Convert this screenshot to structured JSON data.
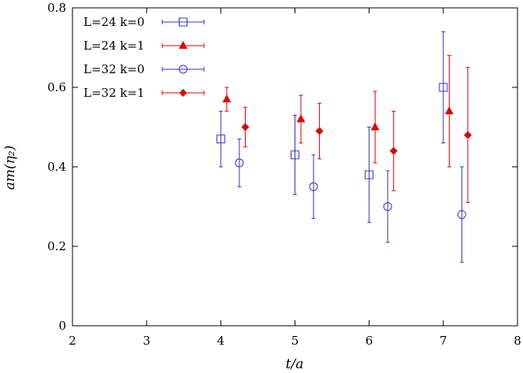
{
  "chart_data": {
    "type": "scatter",
    "title": "",
    "xlabel": "t/a",
    "ylabel": "am(η₂)",
    "xlim": [
      2,
      8
    ],
    "ylim": [
      0,
      0.8
    ],
    "xticks": [
      "2",
      "3",
      "4",
      "5",
      "6",
      "7",
      "8"
    ],
    "yticks": [
      "0",
      "0.2",
      "0.4",
      "0.6",
      "0.8"
    ],
    "grid": false,
    "legend_position": "top-left",
    "series": [
      {
        "name": "L=24 k=0",
        "color": "#3333cc",
        "marker": "open-square",
        "points": [
          {
            "x": 4.0,
            "y": 0.47,
            "err": 0.07
          },
          {
            "x": 5.0,
            "y": 0.43,
            "err": 0.1
          },
          {
            "x": 6.0,
            "y": 0.38,
            "err": 0.12
          },
          {
            "x": 7.0,
            "y": 0.6,
            "err": 0.14
          }
        ]
      },
      {
        "name": "L=24 k=1",
        "color": "#e00000",
        "marker": "filled-triangle",
        "points": [
          {
            "x": 4.08,
            "y": 0.57,
            "err": 0.03
          },
          {
            "x": 5.08,
            "y": 0.52,
            "err": 0.06
          },
          {
            "x": 6.08,
            "y": 0.5,
            "err": 0.09
          },
          {
            "x": 7.08,
            "y": 0.54,
            "err": 0.14
          }
        ]
      },
      {
        "name": "L=32 k=0",
        "color": "#3333cc",
        "marker": "open-circle",
        "points": [
          {
            "x": 4.25,
            "y": 0.41,
            "err": 0.06
          },
          {
            "x": 5.25,
            "y": 0.35,
            "err": 0.08
          },
          {
            "x": 6.25,
            "y": 0.3,
            "err": 0.09
          },
          {
            "x": 7.25,
            "y": 0.28,
            "err": 0.12
          }
        ]
      },
      {
        "name": "L=32 k=1",
        "color": "#e00000",
        "marker": "filled-diamond",
        "points": [
          {
            "x": 4.33,
            "y": 0.5,
            "err": 0.05
          },
          {
            "x": 5.33,
            "y": 0.49,
            "err": 0.07
          },
          {
            "x": 6.33,
            "y": 0.44,
            "err": 0.1
          },
          {
            "x": 7.33,
            "y": 0.48,
            "err": 0.17
          }
        ]
      }
    ]
  }
}
